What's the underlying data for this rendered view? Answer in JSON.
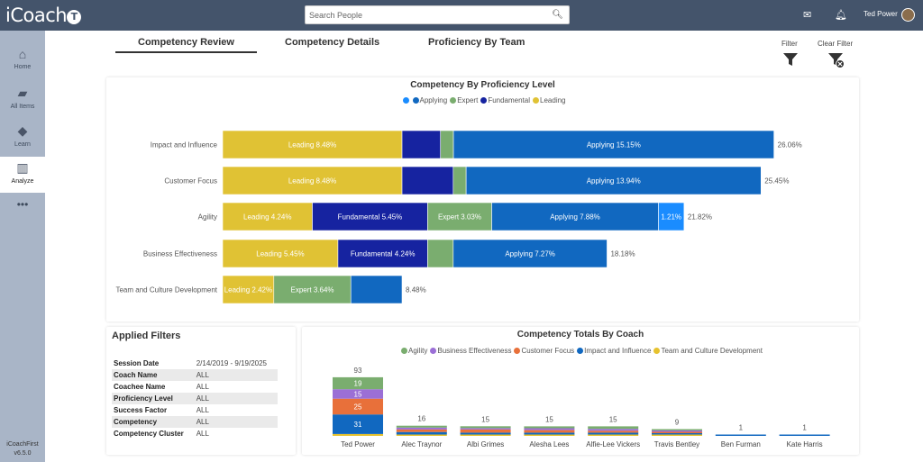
{
  "header": {
    "logo": "iCoach",
    "logo_badge": "T",
    "search_placeholder": "Search People",
    "user_name": "Ted Power"
  },
  "sidebar": {
    "items": [
      {
        "label": "Home",
        "icon": "home-icon",
        "glyph": "⌂"
      },
      {
        "label": "All Items",
        "icon": "folder-icon",
        "glyph": "▰"
      },
      {
        "label": "Learn",
        "icon": "graduation-cap-icon",
        "glyph": "◆"
      },
      {
        "label": "Analyze",
        "icon": "bar-chart-icon",
        "glyph": "▥"
      }
    ],
    "more": "•••",
    "app_name": "iCoachFirst",
    "version": "v6.5.0"
  },
  "tabs": [
    "Competency Review",
    "Competency Details",
    "Proficiency By Team"
  ],
  "filter_label": "Filter",
  "clear_filter_label": "Clear Filter",
  "colors": {
    "applying": "#1168c0",
    "expert": "#7aad6f",
    "fundamental": "#1623a0",
    "leading": "#e0c234",
    "blank": "#1a8cff"
  },
  "chart_data": [
    {
      "type": "bar",
      "orientation": "horizontal",
      "stacked": true,
      "title": "Competency By Proficiency Level",
      "legend": [
        "",
        "Applying",
        "Expert",
        "Fundamental",
        "Leading"
      ],
      "categories": [
        "Impact and Influence",
        "Customer Focus",
        "Agility",
        "Business Effectiveness",
        "Team and Culture Development"
      ],
      "series": [
        {
          "name": "Leading",
          "color": "#e0c234",
          "values": [
            8.48,
            8.48,
            4.24,
            5.45,
            2.42
          ]
        },
        {
          "name": "Fundamental",
          "color": "#1623a0",
          "values": [
            1.82,
            2.42,
            5.45,
            4.24,
            0
          ]
        },
        {
          "name": "Expert",
          "color": "#7aad6f",
          "values": [
            0.61,
            0.61,
            3.03,
            1.21,
            3.64
          ]
        },
        {
          "name": "Applying",
          "color": "#1168c0",
          "values": [
            15.15,
            13.94,
            7.88,
            7.27,
            2.42
          ]
        },
        {
          "name": "",
          "color": "#1a8cff",
          "values": [
            0,
            0,
            1.21,
            0,
            0
          ]
        }
      ],
      "show_label": [
        [
          true,
          false,
          false,
          true,
          false
        ],
        [
          true,
          false,
          false,
          true,
          false
        ],
        [
          true,
          true,
          true,
          true,
          true
        ],
        [
          true,
          true,
          false,
          true,
          false
        ],
        [
          true,
          false,
          true,
          false,
          false
        ]
      ],
      "label_format": "{name} {value}%",
      "totals": [
        "26.06%",
        "25.45%",
        "21.82%",
        "18.18%",
        "8.48%"
      ]
    },
    {
      "type": "bar",
      "stacked": true,
      "title": "Competency Totals By Coach",
      "legend": [
        "Agility",
        "Business Effectiveness",
        "Customer Focus",
        "Impact and Influence",
        "Team and Culture Development"
      ],
      "categories": [
        "Ted Power",
        "Alec Traynor",
        "Albi Grimes",
        "Alesha Lees",
        "Alfie-Lee Vickers",
        "Travis Bentley",
        "Ben Furman",
        "Kate Harris"
      ],
      "series": [
        {
          "name": "Team and Culture Development",
          "color": "#e6c22e",
          "values": [
            3,
            2,
            2,
            2,
            2,
            1,
            0,
            0
          ]
        },
        {
          "name": "Impact and Influence",
          "color": "#1168c0",
          "values": [
            31,
            4,
            3,
            3,
            3,
            2,
            1,
            1
          ]
        },
        {
          "name": "Customer Focus",
          "color": "#e8703a",
          "values": [
            25,
            4,
            5,
            4,
            3,
            2,
            0,
            0
          ]
        },
        {
          "name": "Business Effectiveness",
          "color": "#9b6fd6",
          "values": [
            15,
            3,
            2,
            3,
            3,
            2,
            0,
            0
          ]
        },
        {
          "name": "Agility",
          "color": "#7aad6f",
          "values": [
            19,
            3,
            3,
            3,
            4,
            2,
            0,
            0
          ]
        }
      ],
      "segment_labels_shown_for": [
        "Ted Power"
      ],
      "totals": [
        93,
        16,
        15,
        15,
        15,
        9,
        1,
        1
      ]
    }
  ],
  "filters": {
    "title": "Applied Filters",
    "rows": [
      {
        "k": "Session Date",
        "v": "2/14/2019 - 9/19/2025"
      },
      {
        "k": "Coach Name",
        "v": "ALL"
      },
      {
        "k": "Coachee Name",
        "v": "ALL"
      },
      {
        "k": "Proficiency Level",
        "v": "ALL"
      },
      {
        "k": "Success Factor",
        "v": "ALL"
      },
      {
        "k": "Competency",
        "v": "ALL"
      },
      {
        "k": "Competency Cluster",
        "v": "ALL"
      }
    ]
  }
}
